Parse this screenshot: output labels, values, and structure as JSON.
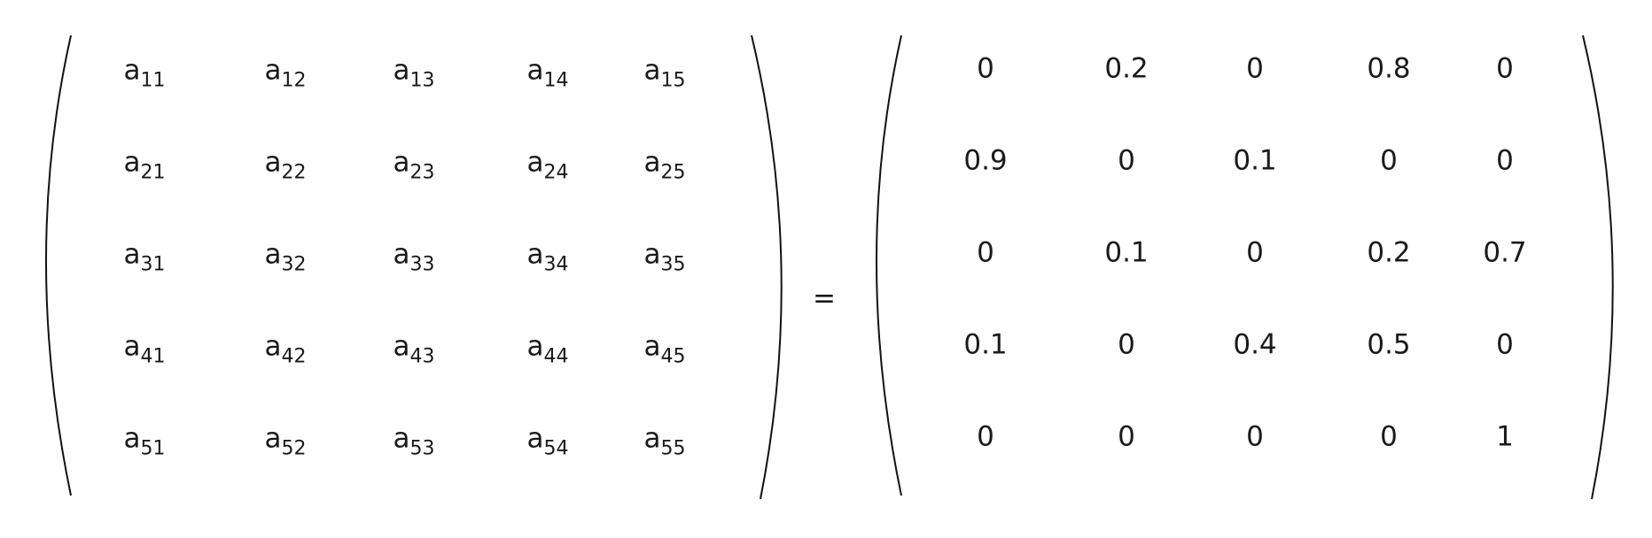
{
  "left_matrix": {
    "base": "a",
    "rows": [
      [
        "11",
        "12",
        "13",
        "14",
        "15"
      ],
      [
        "21",
        "22",
        "23",
        "24",
        "25"
      ],
      [
        "31",
        "32",
        "33",
        "34",
        "35"
      ],
      [
        "41",
        "42",
        "43",
        "44",
        "45"
      ],
      [
        "51",
        "52",
        "53",
        "54",
        "55"
      ]
    ]
  },
  "equals_sign": "=",
  "right_matrix": {
    "rows": [
      [
        "0",
        "0.2",
        "0",
        "0.8",
        "0"
      ],
      [
        "0.9",
        "0",
        "0.1",
        "0",
        "0"
      ],
      [
        "0",
        "0.1",
        "0",
        "0.2",
        "0.7"
      ],
      [
        "0.1",
        "0",
        "0.4",
        "0.5",
        "0"
      ],
      [
        "0",
        "0",
        "0",
        "0",
        "1"
      ]
    ]
  }
}
